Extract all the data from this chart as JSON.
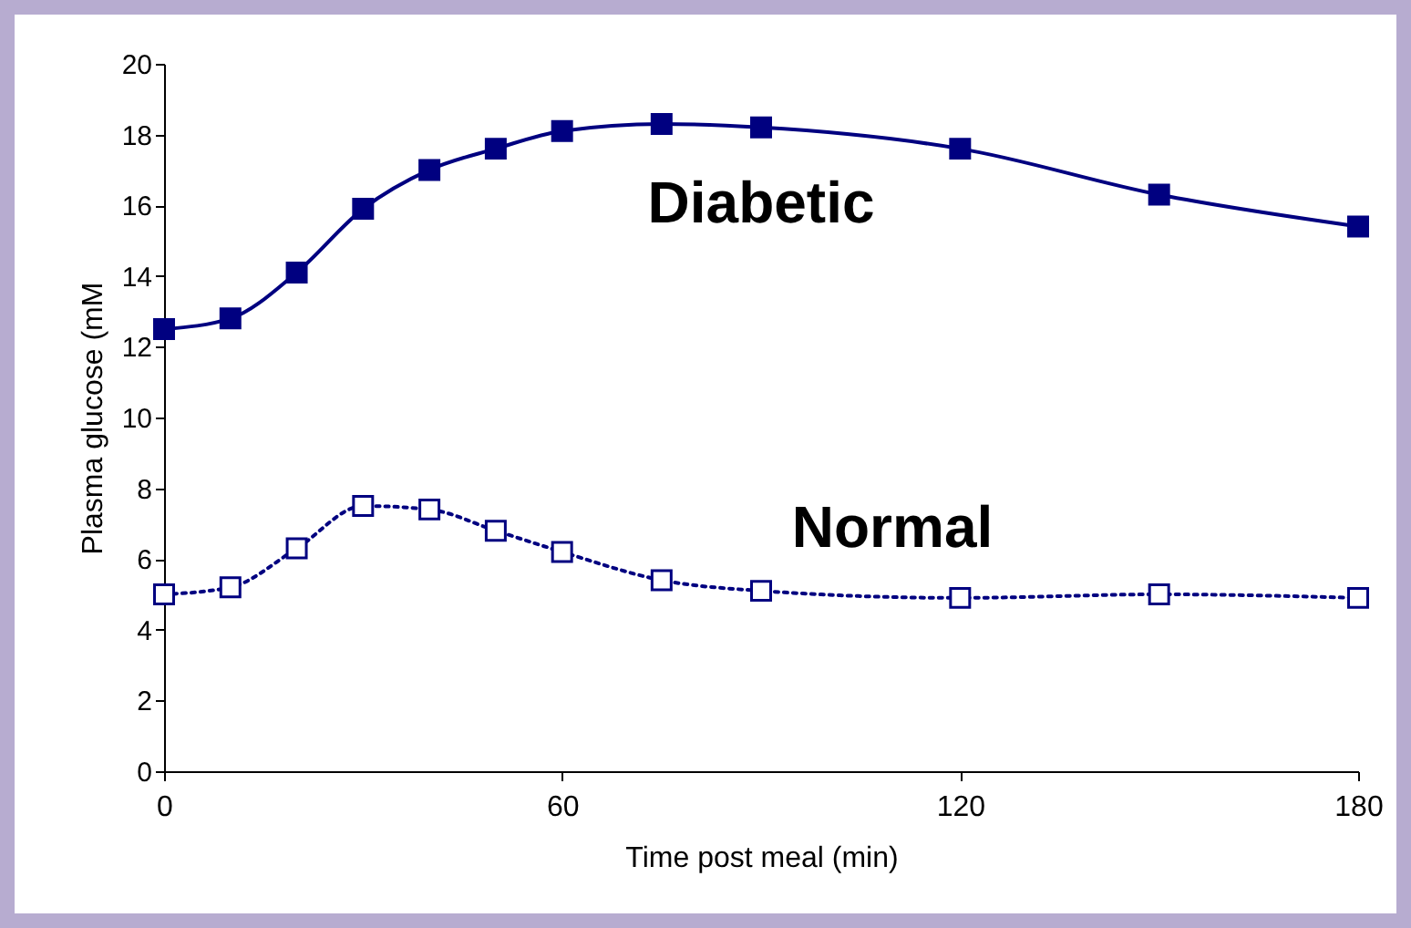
{
  "chart_data": {
    "type": "line",
    "xlabel": "Time post meal (min)",
    "ylabel": "Plasma glucose (mM",
    "x": [
      0,
      10,
      20,
      30,
      40,
      50,
      60,
      75,
      90,
      120,
      150,
      180
    ],
    "series": [
      {
        "name": "Diabetic",
        "color": "#000080",
        "line_style": "solid",
        "marker": "square",
        "values": [
          12.5,
          12.8,
          14.1,
          15.9,
          17.0,
          17.6,
          18.1,
          18.3,
          18.2,
          17.6,
          16.3,
          15.4
        ]
      },
      {
        "name": "Normal",
        "color": "#000080",
        "line_style": "dotted",
        "marker": "square",
        "values": [
          5.0,
          5.2,
          6.3,
          7.5,
          7.4,
          6.8,
          6.2,
          5.4,
          5.1,
          4.9,
          5.0,
          4.9
        ]
      }
    ],
    "xlim": [
      0,
      180
    ],
    "xticks": [
      0,
      60,
      120,
      180
    ],
    "ylim": [
      0,
      20
    ],
    "yticks": [
      0,
      2,
      4,
      6,
      8,
      10,
      12,
      14,
      16,
      18,
      20
    ],
    "grid": false,
    "legend": false
  }
}
